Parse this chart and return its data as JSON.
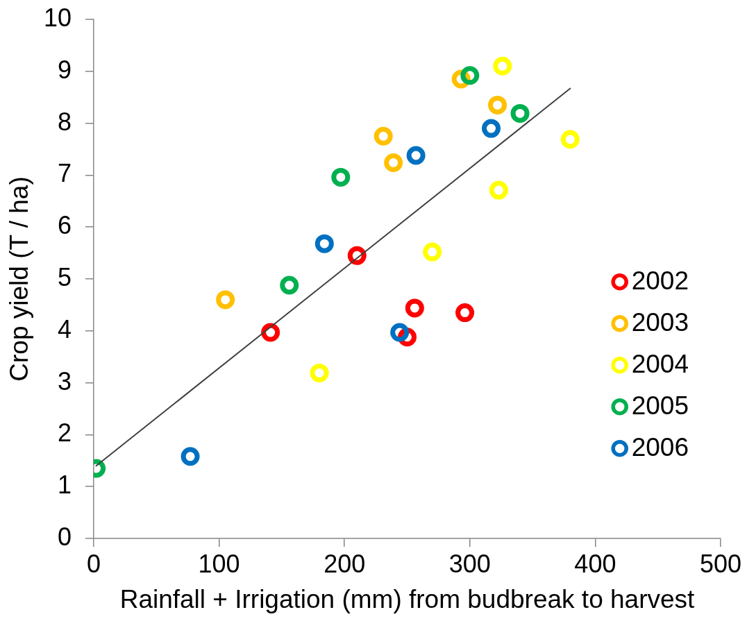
{
  "chart_data": {
    "type": "scatter",
    "xlabel": "Rainfall + Irrigation (mm) from budbreak to harvest",
    "ylabel": "Crop yield (T / ha)",
    "xlim": [
      0,
      500
    ],
    "ylim": [
      0,
      10
    ],
    "xticks": [
      0,
      100,
      200,
      300,
      400,
      500
    ],
    "yticks": [
      0,
      1,
      2,
      3,
      4,
      5,
      6,
      7,
      8,
      9,
      10
    ],
    "grid": false,
    "legend": "right",
    "marker": "circle",
    "series": [
      {
        "name": "2002",
        "color": "#ff0000",
        "x": [
          141,
          210,
          256,
          250,
          296
        ],
        "values": [
          3.97,
          5.45,
          4.44,
          3.88,
          4.35
        ]
      },
      {
        "name": "2003",
        "color": "#ffc000",
        "x": [
          105,
          231,
          239,
          293,
          322
        ],
        "values": [
          4.6,
          7.75,
          7.24,
          8.85,
          8.35
        ]
      },
      {
        "name": "2004",
        "color": "#ffff00",
        "x": [
          180,
          270,
          323,
          326,
          380
        ],
        "values": [
          3.19,
          5.52,
          6.71,
          9.1,
          7.69
        ]
      },
      {
        "name": "2005",
        "color": "#00b050",
        "x": [
          2,
          156,
          197,
          300,
          340
        ],
        "values": [
          1.35,
          4.88,
          6.96,
          8.92,
          8.19
        ]
      },
      {
        "name": "2006",
        "color": "#0070c0",
        "x": [
          77,
          244,
          184,
          257,
          317
        ],
        "values": [
          1.58,
          3.97,
          5.68,
          7.38,
          7.9
        ]
      },
      {
        "type": "line",
        "color": "#404040",
        "marker": "none",
        "x": [
          2,
          380
        ],
        "values": [
          1.4,
          8.67
        ]
      }
    ]
  }
}
